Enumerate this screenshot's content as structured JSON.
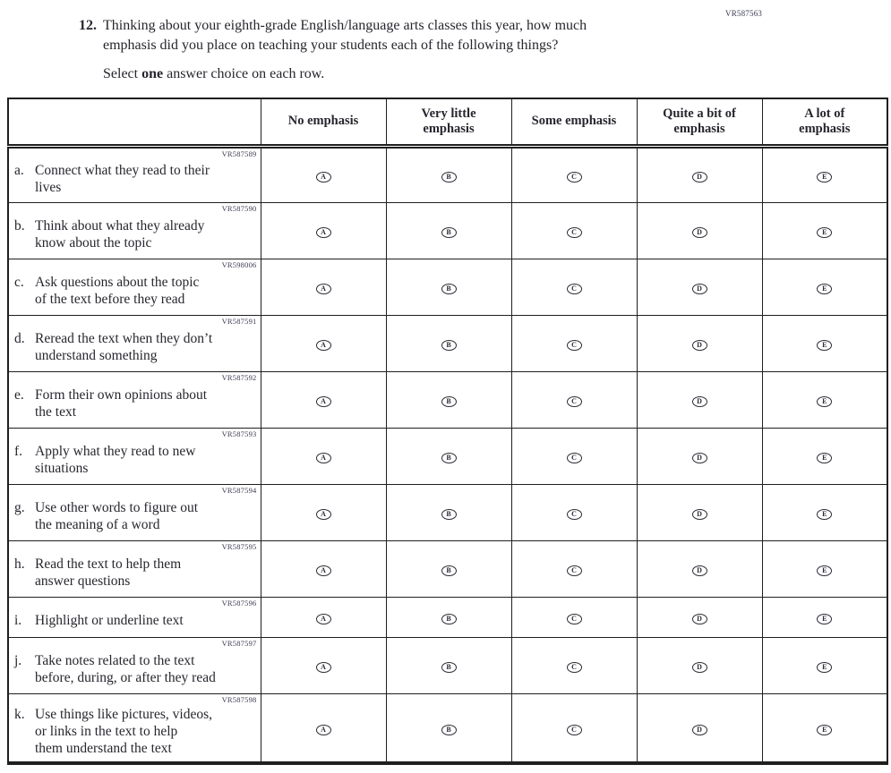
{
  "form_code": "VR587563",
  "question": {
    "number": "12.",
    "text": "Thinking about your eighth-grade English/language arts classes this year, how much\nemphasis did you place on teaching your students each of the following things?",
    "select_prefix": "Select",
    "select_bold": "one",
    "select_suffix": "answer choice on each row."
  },
  "table": {
    "columns": [
      "No emphasis",
      "Very little\nemphasis",
      "Some emphasis",
      "Quite a bit of\nemphasis",
      "A lot of\nemphasis"
    ],
    "bubble_letters": [
      "A",
      "B",
      "C",
      "D",
      "E"
    ],
    "rows": [
      {
        "vr": "VR587589",
        "letter": "a.",
        "label": "Connect what they read to their\nlives"
      },
      {
        "vr": "VR587590",
        "letter": "b.",
        "label": "Think about what they already\nknow about the topic"
      },
      {
        "vr": "VR598006",
        "letter": "c.",
        "label": "Ask questions about the topic\nof the text before they read"
      },
      {
        "vr": "VR587591",
        "letter": "d.",
        "label": "Reread the text when they don’t\nunderstand something"
      },
      {
        "vr": "VR587592",
        "letter": "e.",
        "label": "Form their own opinions about\nthe text"
      },
      {
        "vr": "VR587593",
        "letter": "f.",
        "label": "Apply what they read to new\nsituations"
      },
      {
        "vr": "VR587594",
        "letter": "g.",
        "label": "Use other words to figure out\nthe meaning of a word"
      },
      {
        "vr": "VR587595",
        "letter": "h.",
        "label": "Read the text to help them\nanswer questions"
      },
      {
        "vr": "VR587596",
        "letter": "i.",
        "label": "Highlight or underline text"
      },
      {
        "vr": "VR587597",
        "letter": "j.",
        "label": "Take notes related to the text\nbefore, during, or after they read"
      },
      {
        "vr": "VR587598",
        "letter": "k.",
        "label": "Use things like pictures, videos,\nor links in the text to help\nthem understand the text"
      }
    ]
  },
  "colors": {
    "text": "#26262e",
    "border": "#1f1f1f",
    "vr_code": "#3b3b52"
  }
}
